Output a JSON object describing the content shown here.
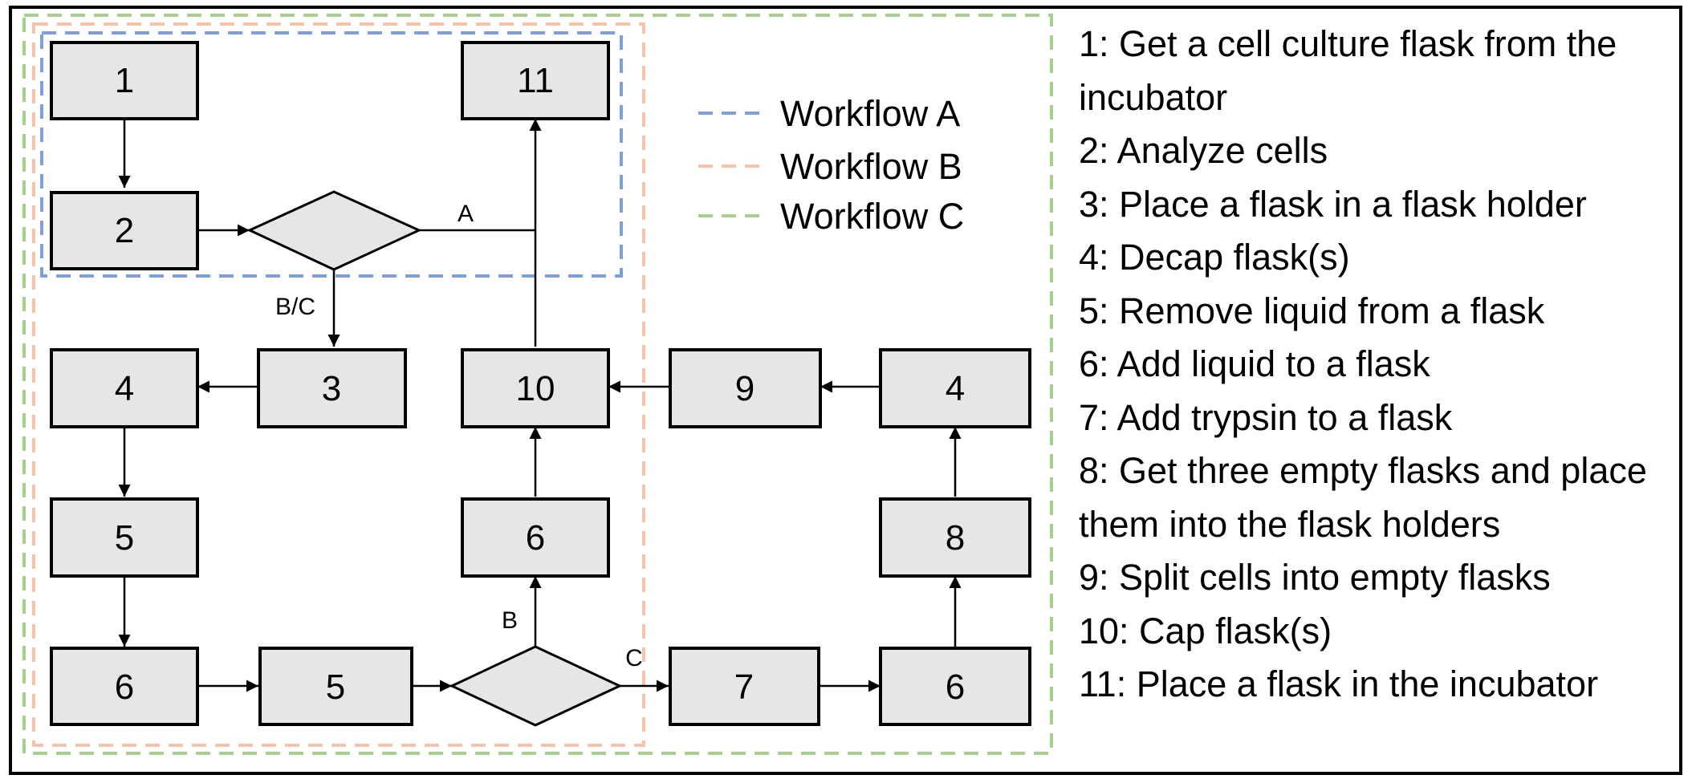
{
  "colors": {
    "node_fill": "#e6e6e6",
    "workflow_a": "#7f9fd9",
    "workflow_b": "#f5c4a8",
    "workflow_c": "#a8d08d",
    "line": "#000000"
  },
  "nodes": {
    "n1": "1",
    "n11": "11",
    "n2": "2",
    "n4a": "4",
    "n3": "3",
    "n10": "10",
    "n9": "9",
    "n4b": "4",
    "n5a": "5",
    "n6a": "6",
    "n8": "8",
    "n6b": "6",
    "n5b": "5",
    "n7": "7",
    "n6c": "6"
  },
  "edge_labels": {
    "a": "A",
    "bc": "B/C",
    "b": "B",
    "c": "C"
  },
  "workflows": [
    "Workflow A",
    "Workflow B",
    "Workflow C"
  ],
  "steps": [
    "1:  Get a cell culture flask from the incubator",
    "2: Analyze cells",
    "3: Place a flask in a flask holder",
    "4: Decap flask(s)",
    "5: Remove liquid from a flask",
    "6: Add liquid to a flask",
    "7: Add trypsin to a flask",
    "8: Get three empty flasks and place them into the flask holders",
    "9: Split cells into empty flasks",
    "10: Cap flask(s)",
    "11: Place a flask in the incubator"
  ]
}
